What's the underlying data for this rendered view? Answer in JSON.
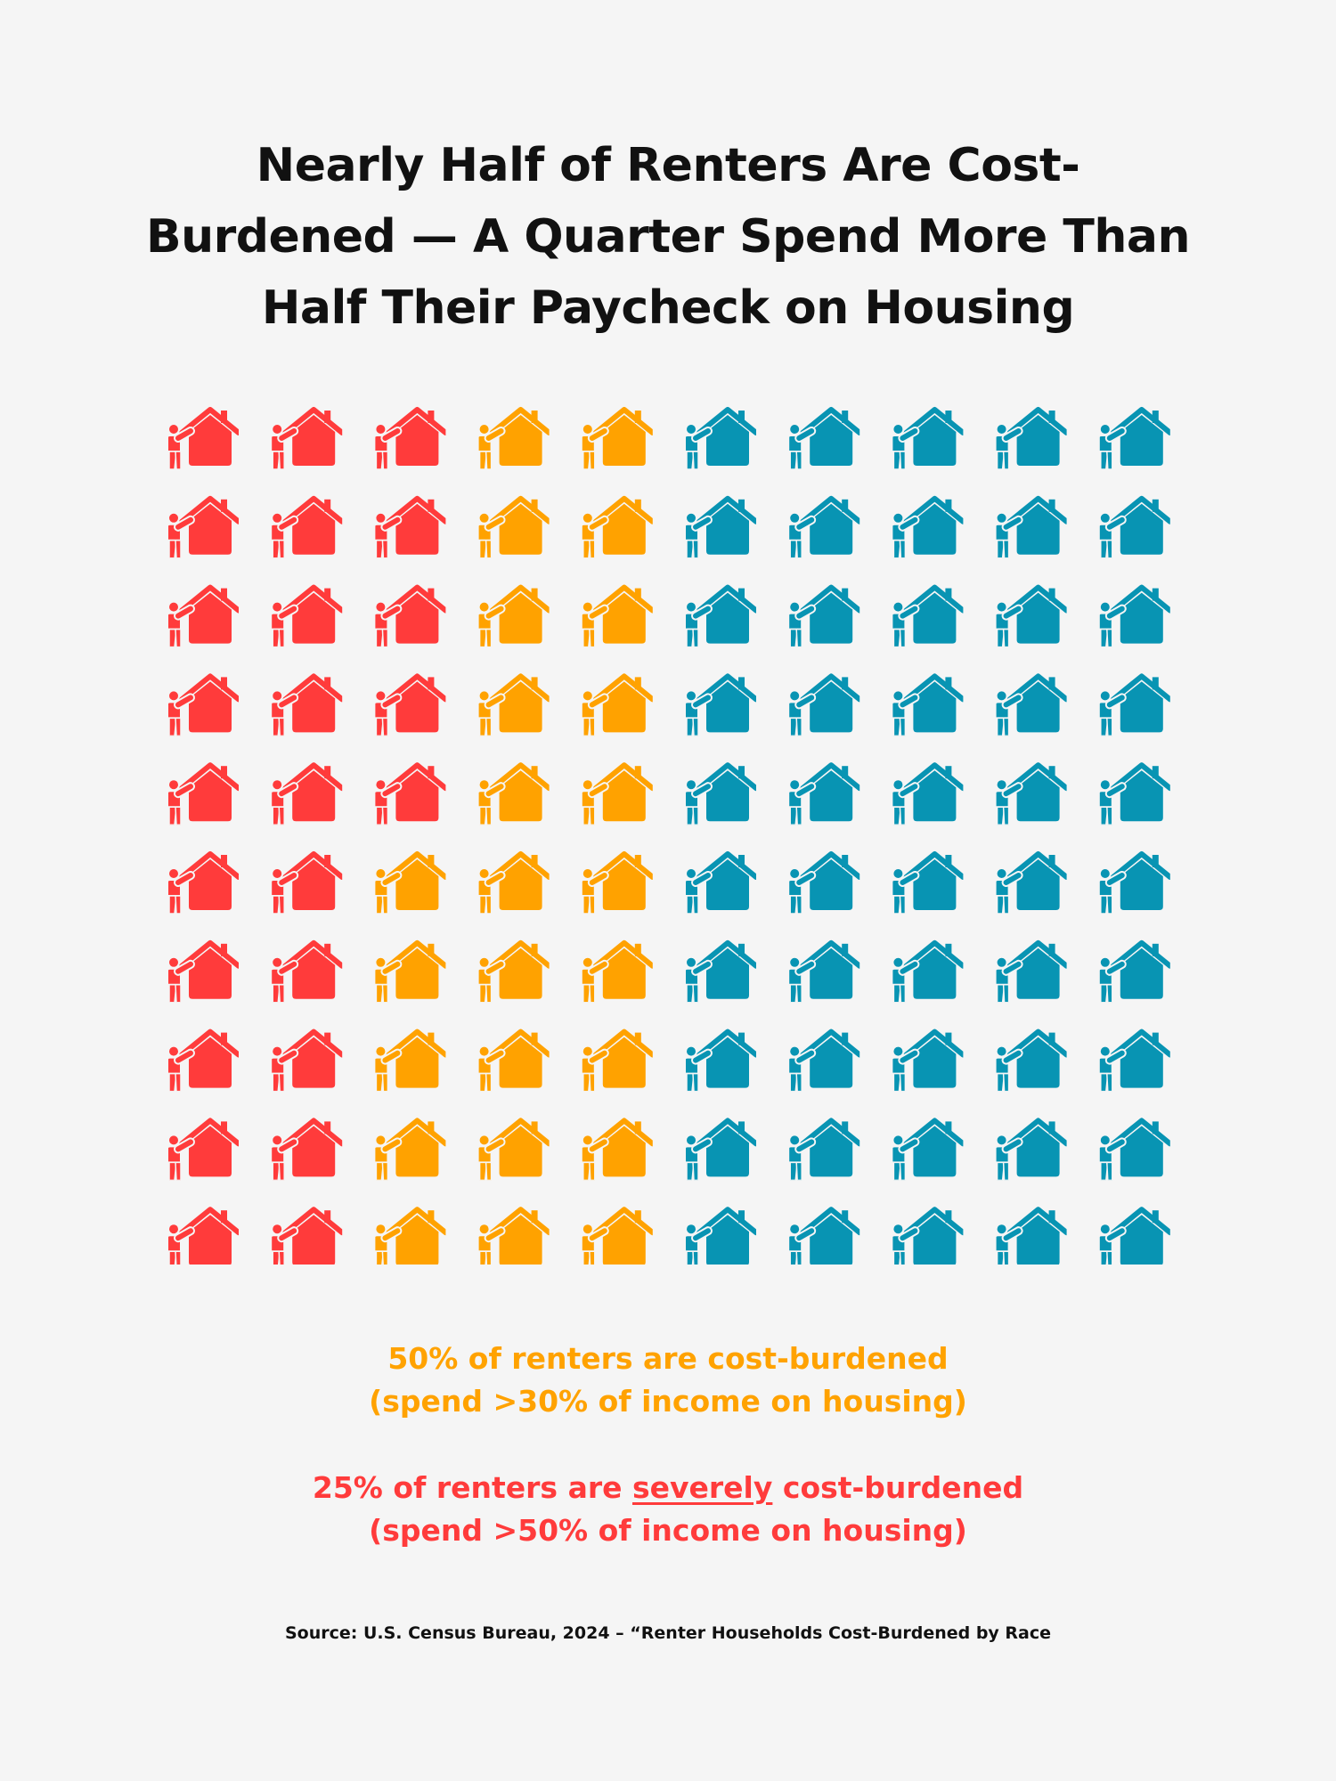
{
  "title": "Nearly Half of Renters Are Cost-Burdened — A Quarter Spend More Than Half Their Paycheck on Housing",
  "colors": {
    "background": "#f5f5f5",
    "severe": "#ff3b3b",
    "burdened": "#ffa200",
    "not_burdened": "#0894b3"
  },
  "chart_data": {
    "type": "icon-array",
    "icon": "person-with-house-icon",
    "total_icons": 100,
    "rows": 10,
    "cols": 10,
    "order": "column-major",
    "categories": [
      {
        "key": "severe",
        "count": 25
      },
      {
        "key": "burdened",
        "count": 25
      },
      {
        "key": "not_burdened",
        "count": 50
      }
    ]
  },
  "annotations": {
    "burdened_line1": "50% of renters are cost-burdened",
    "burdened_line2": "(spend >30% of income on housing)",
    "severe_line1_pre": "25% of renters are ",
    "severe_line1_emph": "severely",
    "severe_line1_post": " cost-burdened",
    "severe_line2": "(spend >50% of income on housing)"
  },
  "source": "Source: U.S. Census Bureau, 2024 – “Renter Households Cost-Burdened by Race"
}
